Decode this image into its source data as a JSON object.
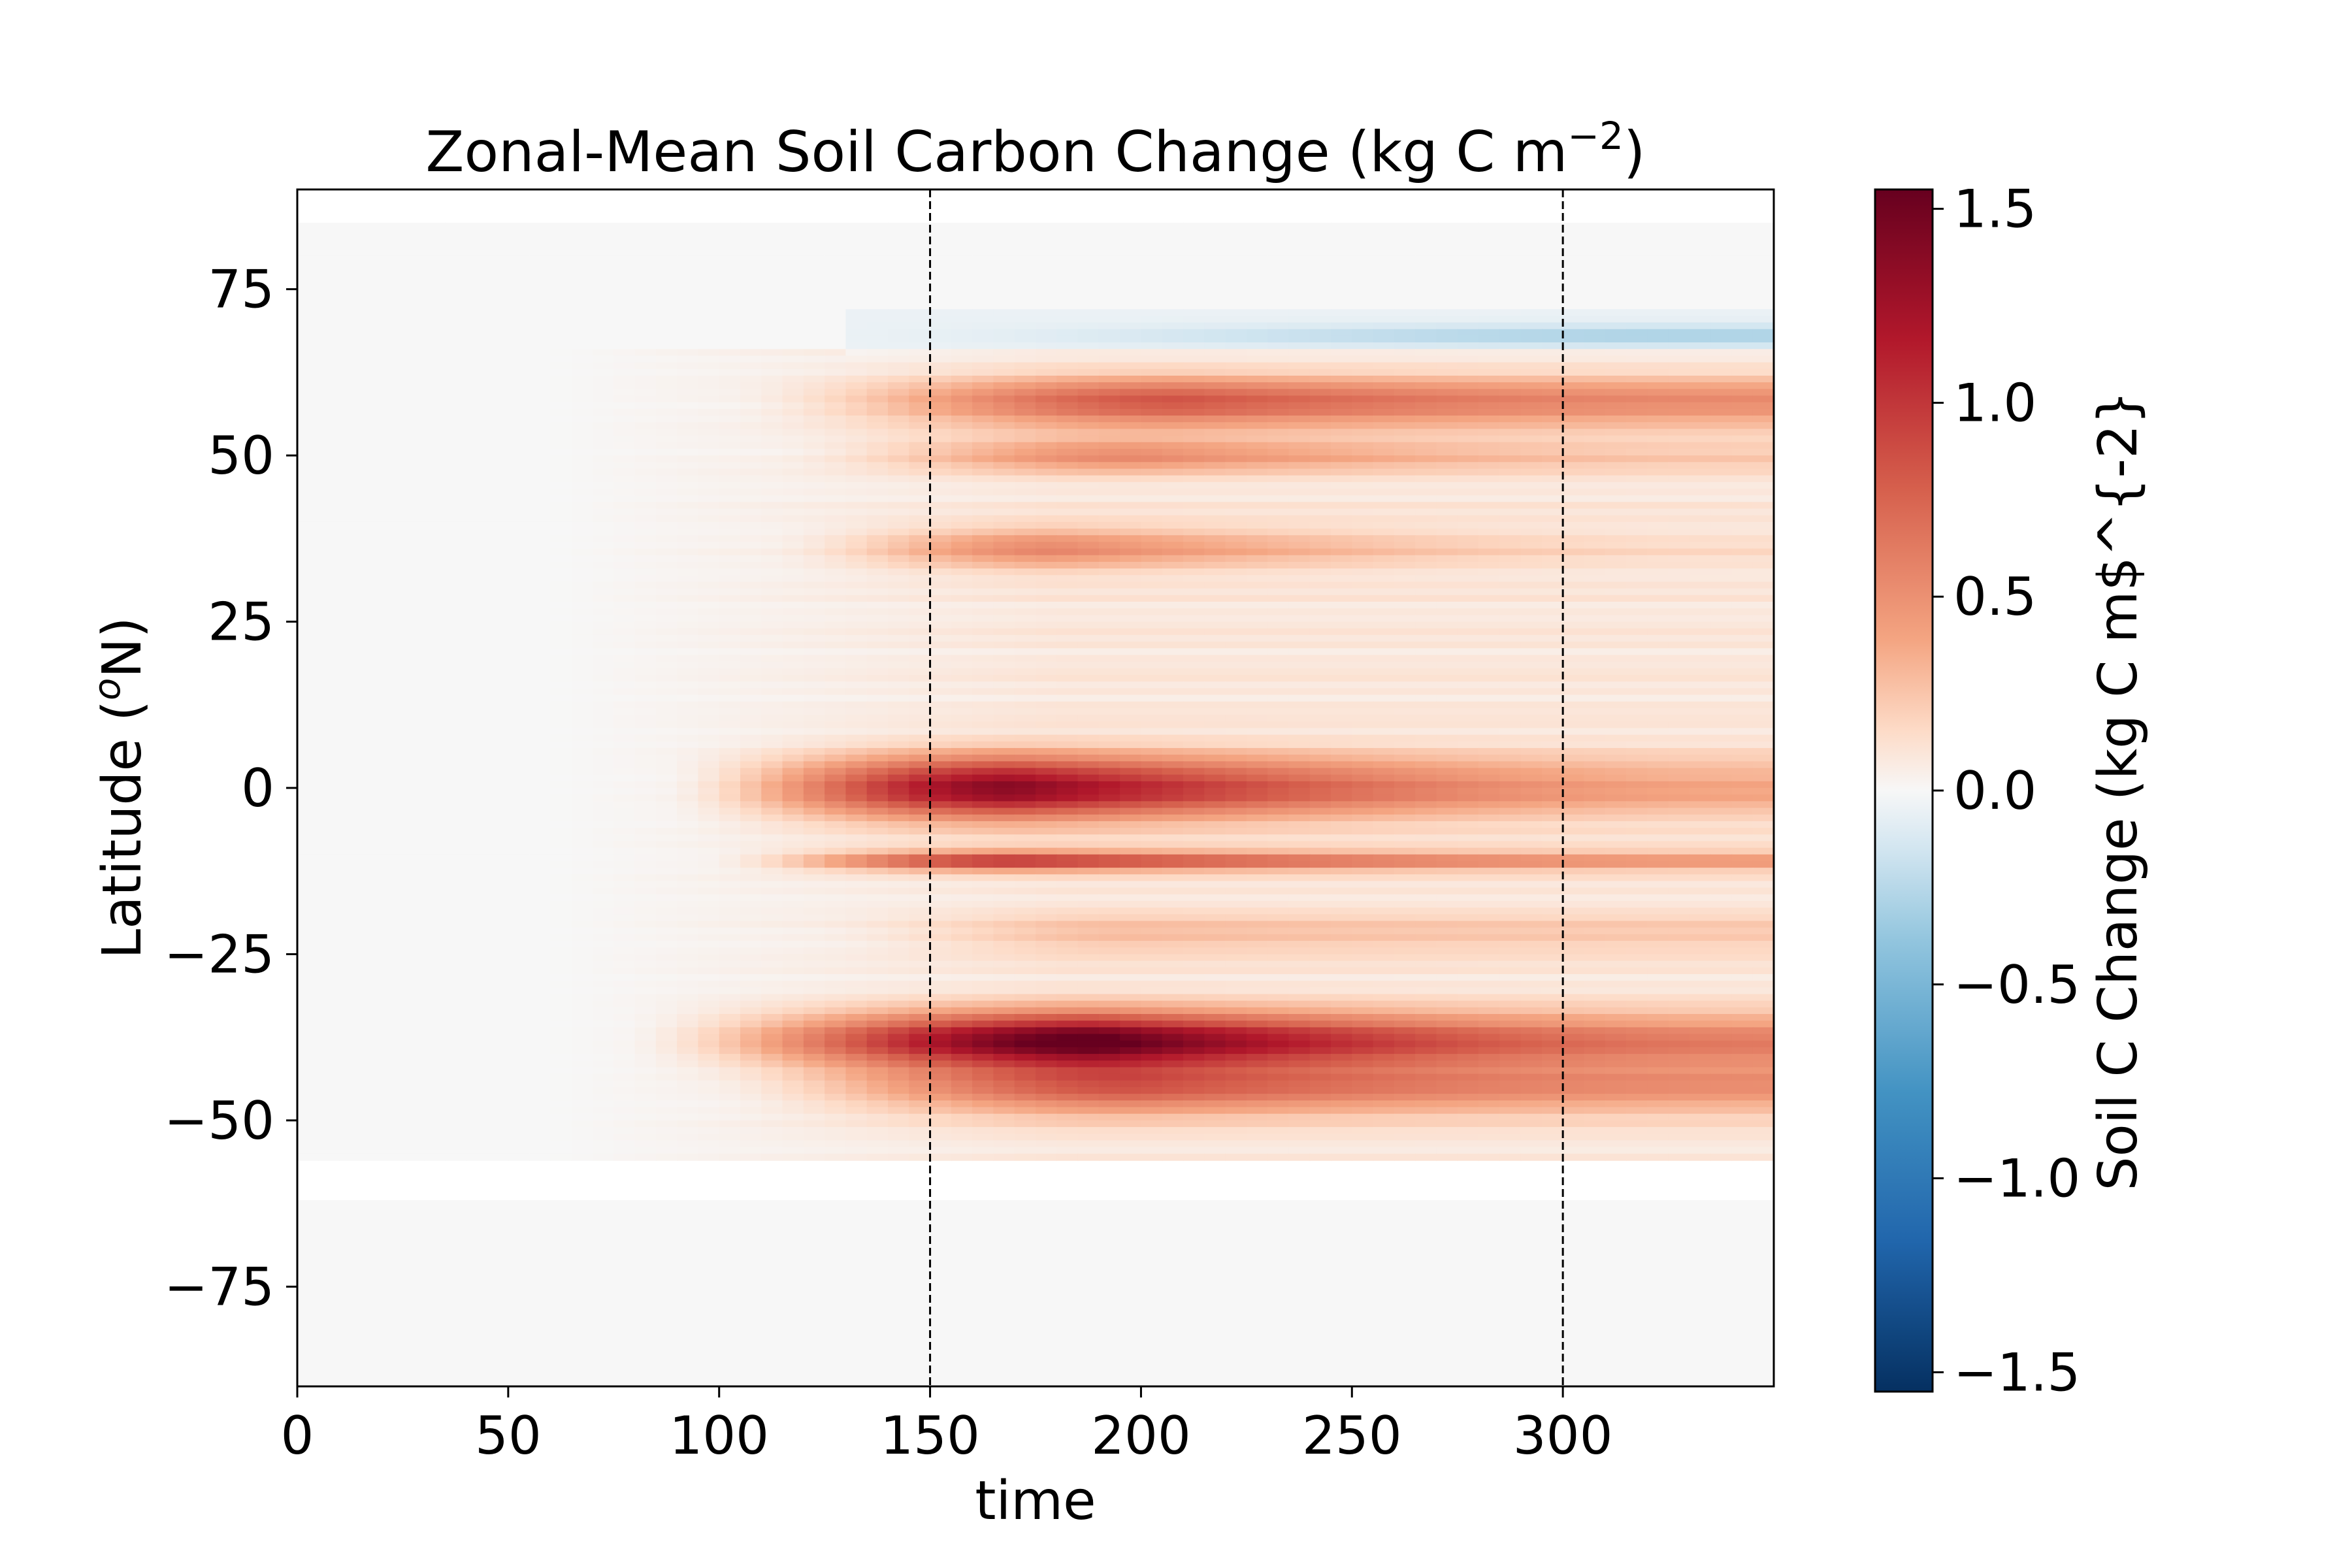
{
  "chart_data": {
    "type": "heatmap",
    "title": "Zonal-Mean Soil Carbon Change (kg C m",
    "title_superscript": "−2",
    "title_suffix": ")",
    "xlabel": "time",
    "ylabel_main": "Latitude (",
    "ylabel_superscript": "o",
    "ylabel_suffix": "N)",
    "xlim": [
      0,
      350
    ],
    "ylim": [
      -90,
      90
    ],
    "x_ticks": [
      0,
      50,
      100,
      150,
      200,
      250,
      300
    ],
    "y_ticks": [
      75,
      50,
      25,
      0,
      -25,
      -50,
      -75
    ],
    "x_tick_labels": [
      "0",
      "50",
      "100",
      "150",
      "200",
      "250",
      "300"
    ],
    "y_tick_labels": [
      "75",
      "50",
      "25",
      "0",
      "−25",
      "−50",
      "−75"
    ],
    "colormap": "RdBu_r",
    "color_range": [
      -1.55,
      1.55
    ],
    "grid": false,
    "data_lat_range": [
      -90,
      85
    ],
    "missing_lat_band": [
      -62,
      -56
    ],
    "vertical_reference_lines": [
      150,
      300
    ],
    "colorbar": {
      "label": "Soil C Change (kg C m$^{-2}",
      "ticks": [
        1.5,
        1.0,
        0.5,
        0.0,
        -0.5,
        -1.0,
        -1.5
      ],
      "tick_labels": [
        "1.5",
        "1.0",
        "0.5",
        "0.0",
        "−0.5",
        "−1.0",
        "−1.5"
      ]
    },
    "features": [
      {
        "lat": 0,
        "lat_width": 4.5,
        "peak_time": 170,
        "peak_value": 1.3,
        "onset_time": 85,
        "end_value": 0.3
      },
      {
        "lat": -38,
        "lat_width": 4,
        "peak_time": 190,
        "peak_value": 1.5,
        "onset_time": 75,
        "end_value": 0.5
      },
      {
        "lat": -11,
        "lat_width": 1.4,
        "peak_time": 170,
        "peak_value": 0.95,
        "onset_time": 95,
        "end_value": 0.4
      },
      {
        "lat": -45,
        "lat_width": 4,
        "peak_time": 200,
        "peak_value": 0.7,
        "onset_time": 95,
        "end_value": 0.4
      },
      {
        "lat": 58,
        "lat_width": 3.5,
        "peak_time": 210,
        "peak_value": 0.75,
        "onset_time": 100,
        "end_value": 0.45
      },
      {
        "lat": 50,
        "lat_width": 2.5,
        "peak_time": 200,
        "peak_value": 0.45,
        "onset_time": 110,
        "end_value": 0.15
      },
      {
        "lat": 36,
        "lat_width": 3,
        "peak_time": 180,
        "peak_value": 0.45,
        "onset_time": 110,
        "end_value": 0.05
      },
      {
        "lat": 68,
        "lat_width": 1.5,
        "peak_time": 330,
        "peak_value": -0.25,
        "onset_time": 120,
        "end_value": -0.25
      },
      {
        "lat": -22,
        "lat_width": 3,
        "peak_time": 200,
        "peak_value": 0.2,
        "onset_time": 120,
        "end_value": 0.15
      }
    ]
  }
}
